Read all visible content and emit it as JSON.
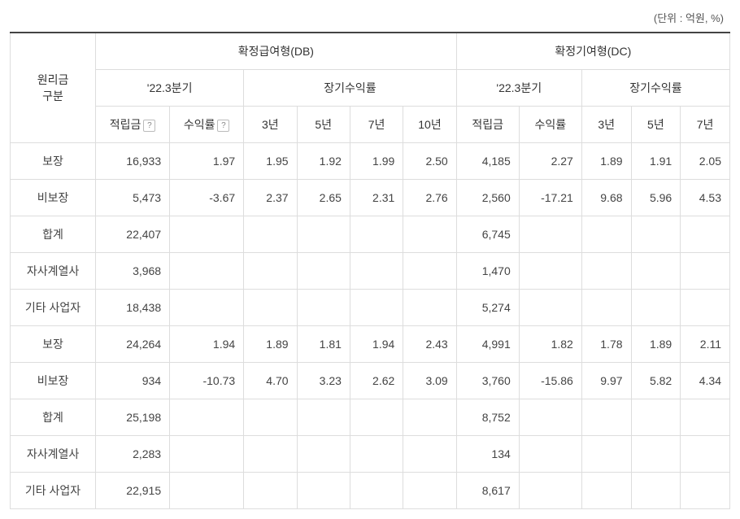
{
  "unit_note": "(단위 : 억원, %)",
  "headers": {
    "row_label_1": "원리금",
    "row_label_2": "구분",
    "db_group": "확정급여형(DB)",
    "dc_group": "확정기여형(DC)",
    "quarter": "'22.3분기",
    "longterm": "장기수익률",
    "deposit": "적립금",
    "rate": "수익률",
    "y3": "3년",
    "y5": "5년",
    "y7": "7년",
    "y10": "10년",
    "help": "?"
  },
  "rows": [
    {
      "label": "보장",
      "db_dep": "16,933",
      "db_ret": "1.97",
      "db3": "1.95",
      "db5": "1.92",
      "db7": "1.99",
      "db10": "2.50",
      "dc_dep": "4,185",
      "dc_ret": "2.27",
      "dc3": "1.89",
      "dc5": "1.91",
      "dc7": "2.05"
    },
    {
      "label": "비보장",
      "db_dep": "5,473",
      "db_ret": "-3.67",
      "db3": "2.37",
      "db5": "2.65",
      "db7": "2.31",
      "db10": "2.76",
      "dc_dep": "2,560",
      "dc_ret": "-17.21",
      "dc3": "9.68",
      "dc5": "5.96",
      "dc7": "4.53"
    },
    {
      "label": "합계",
      "db_dep": "22,407",
      "db_ret": "",
      "db3": "",
      "db5": "",
      "db7": "",
      "db10": "",
      "dc_dep": "6,745",
      "dc_ret": "",
      "dc3": "",
      "dc5": "",
      "dc7": ""
    },
    {
      "label": "자사계열사",
      "db_dep": "3,968",
      "db_ret": "",
      "db3": "",
      "db5": "",
      "db7": "",
      "db10": "",
      "dc_dep": "1,470",
      "dc_ret": "",
      "dc3": "",
      "dc5": "",
      "dc7": ""
    },
    {
      "label": "기타 사업자",
      "db_dep": "18,438",
      "db_ret": "",
      "db3": "",
      "db5": "",
      "db7": "",
      "db10": "",
      "dc_dep": "5,274",
      "dc_ret": "",
      "dc3": "",
      "dc5": "",
      "dc7": ""
    },
    {
      "label": "보장",
      "db_dep": "24,264",
      "db_ret": "1.94",
      "db3": "1.89",
      "db5": "1.81",
      "db7": "1.94",
      "db10": "2.43",
      "dc_dep": "4,991",
      "dc_ret": "1.82",
      "dc3": "1.78",
      "dc5": "1.89",
      "dc7": "2.11"
    },
    {
      "label": "비보장",
      "db_dep": "934",
      "db_ret": "-10.73",
      "db3": "4.70",
      "db5": "3.23",
      "db7": "2.62",
      "db10": "3.09",
      "dc_dep": "3,760",
      "dc_ret": "-15.86",
      "dc3": "9.97",
      "dc5": "5.82",
      "dc7": "4.34"
    },
    {
      "label": "합계",
      "db_dep": "25,198",
      "db_ret": "",
      "db3": "",
      "db5": "",
      "db7": "",
      "db10": "",
      "dc_dep": "8,752",
      "dc_ret": "",
      "dc3": "",
      "dc5": "",
      "dc7": ""
    },
    {
      "label": "자사계열사",
      "db_dep": "2,283",
      "db_ret": "",
      "db3": "",
      "db5": "",
      "db7": "",
      "db10": "",
      "dc_dep": "134",
      "dc_ret": "",
      "dc3": "",
      "dc5": "",
      "dc7": ""
    },
    {
      "label": "기타 사업자",
      "db_dep": "22,915",
      "db_ret": "",
      "db3": "",
      "db5": "",
      "db7": "",
      "db10": "",
      "dc_dep": "8,617",
      "dc_ret": "",
      "dc3": "",
      "dc5": "",
      "dc7": ""
    }
  ]
}
